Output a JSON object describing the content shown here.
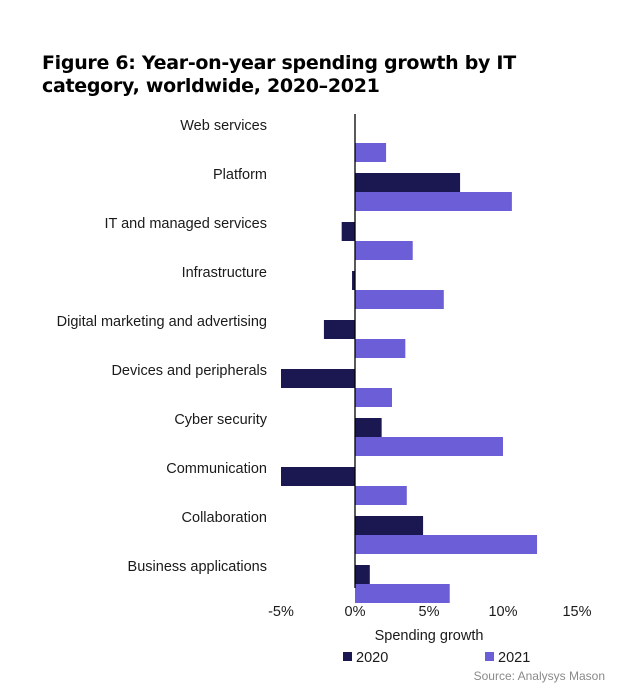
{
  "chart_data": {
    "type": "bar",
    "orientation": "horizontal",
    "title": "Figure 6: Year-on-year spending growth by IT category, worldwide, 2020–2021",
    "categories": [
      "Web services",
      "Platform",
      "IT and managed services",
      "Infrastructure",
      "Digital marketing and advertising",
      "Devices and peripherals",
      "Cyber security",
      "Communication",
      "Collaboration",
      "Business applications"
    ],
    "series": [
      {
        "name": "2020",
        "color": "#1b1750",
        "values": [
          0.0,
          7.1,
          -0.9,
          -0.2,
          -2.1,
          -5.0,
          1.8,
          -5.0,
          4.6,
          1.0
        ]
      },
      {
        "name": "2021",
        "color": "#6b5ed6",
        "values": [
          2.1,
          10.6,
          3.9,
          6.0,
          3.4,
          2.5,
          10.0,
          3.5,
          12.3,
          6.4
        ]
      }
    ],
    "xlabel": "Spending growth",
    "xlim": [
      -5,
      15
    ],
    "xticks": [
      -5,
      0,
      5,
      10,
      15
    ],
    "xtick_labels": [
      "-5%",
      "0%",
      "5%",
      "10%",
      "15%"
    ],
    "grid": false,
    "legend_position": "bottom",
    "source": "Source: Analysys Mason"
  }
}
